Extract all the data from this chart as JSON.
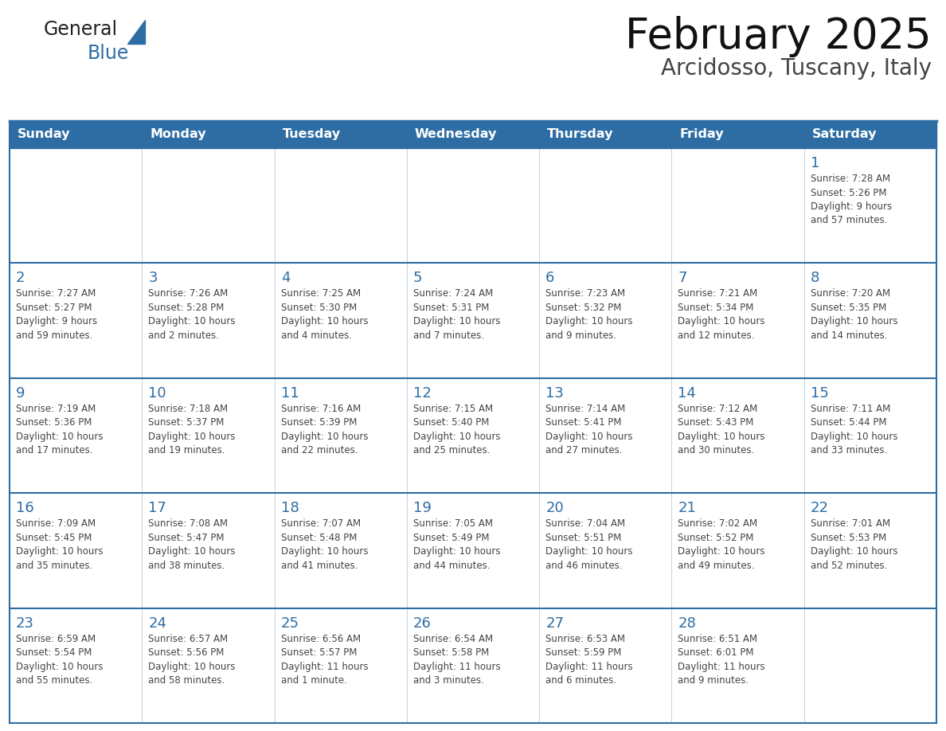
{
  "title": "February 2025",
  "subtitle": "Arcidosso, Tuscany, Italy",
  "header_bg_color": "#2E6DA4",
  "header_text_color": "#FFFFFF",
  "day_number_color": "#2E6DA4",
  "text_color": "#444444",
  "line_color": "#2E6DA4",
  "days_of_week": [
    "Sunday",
    "Monday",
    "Tuesday",
    "Wednesday",
    "Thursday",
    "Friday",
    "Saturday"
  ],
  "weeks": [
    [
      {
        "day": null,
        "info": null
      },
      {
        "day": null,
        "info": null
      },
      {
        "day": null,
        "info": null
      },
      {
        "day": null,
        "info": null
      },
      {
        "day": null,
        "info": null
      },
      {
        "day": null,
        "info": null
      },
      {
        "day": 1,
        "info": "Sunrise: 7:28 AM\nSunset: 5:26 PM\nDaylight: 9 hours\nand 57 minutes."
      }
    ],
    [
      {
        "day": 2,
        "info": "Sunrise: 7:27 AM\nSunset: 5:27 PM\nDaylight: 9 hours\nand 59 minutes."
      },
      {
        "day": 3,
        "info": "Sunrise: 7:26 AM\nSunset: 5:28 PM\nDaylight: 10 hours\nand 2 minutes."
      },
      {
        "day": 4,
        "info": "Sunrise: 7:25 AM\nSunset: 5:30 PM\nDaylight: 10 hours\nand 4 minutes."
      },
      {
        "day": 5,
        "info": "Sunrise: 7:24 AM\nSunset: 5:31 PM\nDaylight: 10 hours\nand 7 minutes."
      },
      {
        "day": 6,
        "info": "Sunrise: 7:23 AM\nSunset: 5:32 PM\nDaylight: 10 hours\nand 9 minutes."
      },
      {
        "day": 7,
        "info": "Sunrise: 7:21 AM\nSunset: 5:34 PM\nDaylight: 10 hours\nand 12 minutes."
      },
      {
        "day": 8,
        "info": "Sunrise: 7:20 AM\nSunset: 5:35 PM\nDaylight: 10 hours\nand 14 minutes."
      }
    ],
    [
      {
        "day": 9,
        "info": "Sunrise: 7:19 AM\nSunset: 5:36 PM\nDaylight: 10 hours\nand 17 minutes."
      },
      {
        "day": 10,
        "info": "Sunrise: 7:18 AM\nSunset: 5:37 PM\nDaylight: 10 hours\nand 19 minutes."
      },
      {
        "day": 11,
        "info": "Sunrise: 7:16 AM\nSunset: 5:39 PM\nDaylight: 10 hours\nand 22 minutes."
      },
      {
        "day": 12,
        "info": "Sunrise: 7:15 AM\nSunset: 5:40 PM\nDaylight: 10 hours\nand 25 minutes."
      },
      {
        "day": 13,
        "info": "Sunrise: 7:14 AM\nSunset: 5:41 PM\nDaylight: 10 hours\nand 27 minutes."
      },
      {
        "day": 14,
        "info": "Sunrise: 7:12 AM\nSunset: 5:43 PM\nDaylight: 10 hours\nand 30 minutes."
      },
      {
        "day": 15,
        "info": "Sunrise: 7:11 AM\nSunset: 5:44 PM\nDaylight: 10 hours\nand 33 minutes."
      }
    ],
    [
      {
        "day": 16,
        "info": "Sunrise: 7:09 AM\nSunset: 5:45 PM\nDaylight: 10 hours\nand 35 minutes."
      },
      {
        "day": 17,
        "info": "Sunrise: 7:08 AM\nSunset: 5:47 PM\nDaylight: 10 hours\nand 38 minutes."
      },
      {
        "day": 18,
        "info": "Sunrise: 7:07 AM\nSunset: 5:48 PM\nDaylight: 10 hours\nand 41 minutes."
      },
      {
        "day": 19,
        "info": "Sunrise: 7:05 AM\nSunset: 5:49 PM\nDaylight: 10 hours\nand 44 minutes."
      },
      {
        "day": 20,
        "info": "Sunrise: 7:04 AM\nSunset: 5:51 PM\nDaylight: 10 hours\nand 46 minutes."
      },
      {
        "day": 21,
        "info": "Sunrise: 7:02 AM\nSunset: 5:52 PM\nDaylight: 10 hours\nand 49 minutes."
      },
      {
        "day": 22,
        "info": "Sunrise: 7:01 AM\nSunset: 5:53 PM\nDaylight: 10 hours\nand 52 minutes."
      }
    ],
    [
      {
        "day": 23,
        "info": "Sunrise: 6:59 AM\nSunset: 5:54 PM\nDaylight: 10 hours\nand 55 minutes."
      },
      {
        "day": 24,
        "info": "Sunrise: 6:57 AM\nSunset: 5:56 PM\nDaylight: 10 hours\nand 58 minutes."
      },
      {
        "day": 25,
        "info": "Sunrise: 6:56 AM\nSunset: 5:57 PM\nDaylight: 11 hours\nand 1 minute."
      },
      {
        "day": 26,
        "info": "Sunrise: 6:54 AM\nSunset: 5:58 PM\nDaylight: 11 hours\nand 3 minutes."
      },
      {
        "day": 27,
        "info": "Sunrise: 6:53 AM\nSunset: 5:59 PM\nDaylight: 11 hours\nand 6 minutes."
      },
      {
        "day": 28,
        "info": "Sunrise: 6:51 AM\nSunset: 6:01 PM\nDaylight: 11 hours\nand 9 minutes."
      },
      {
        "day": null,
        "info": null
      }
    ]
  ],
  "logo_text_general": "General",
  "logo_text_blue": "Blue",
  "logo_triangle_color": "#2E6DA4",
  "logo_general_color": "#222222"
}
